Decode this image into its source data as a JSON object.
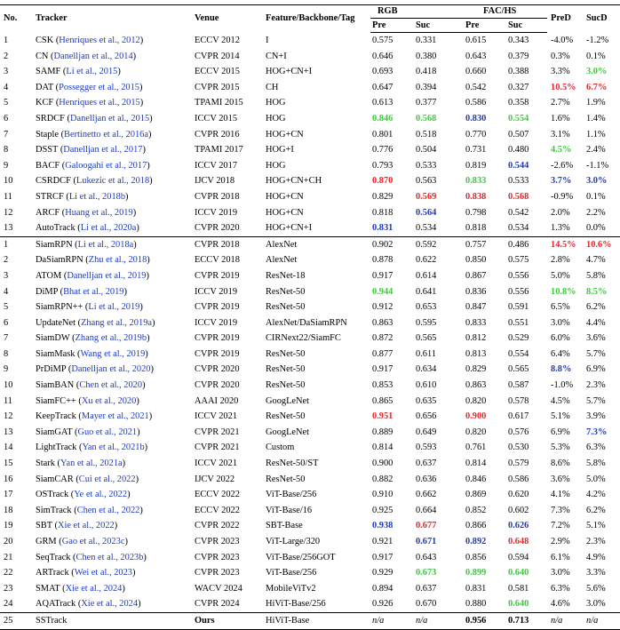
{
  "header": {
    "no": "No.",
    "tracker": "Tracker",
    "venue": "Venue",
    "feature": "Feature/Backbone/Tag",
    "rgb": "RGB",
    "fachs": "FAC/HS",
    "pred": "PreD",
    "sucd": "SucD",
    "pre": "Pre",
    "suc": "Suc"
  },
  "groups": [
    {
      "rows": [
        {
          "no": "1",
          "name": "CSK",
          "cite": "Henriques et al., 2012",
          "venue": "ECCV 2012",
          "feature": "I",
          "rgb_pre": "0.575",
          "rgb_suc": "0.331",
          "fac_pre": "0.615",
          "fac_suc": "0.343",
          "pred": "-4.0%",
          "sucd": "-1.2%"
        },
        {
          "no": "2",
          "name": "CN",
          "cite": "Danelljan et al., 2014",
          "venue": "CVPR 2014",
          "feature": "CN+I",
          "rgb_pre": "0.646",
          "rgb_suc": "0.380",
          "fac_pre": "0.643",
          "fac_suc": "0.379",
          "pred": "0.3%",
          "sucd": "0.1%"
        },
        {
          "no": "3",
          "name": "SAMF",
          "cite": "Li et al., 2015",
          "venue": "ECCV 2015",
          "feature": "HOG+CN+I",
          "rgb_pre": "0.693",
          "rgb_suc": "0.418",
          "fac_pre": "0.660",
          "fac_suc": "0.388",
          "pred": "3.3%",
          "sucd": "3.0%",
          "sucd_c": "green"
        },
        {
          "no": "4",
          "name": "DAT",
          "cite": "Possegger et al., 2015",
          "venue": "CVPR 2015",
          "feature": "CH",
          "rgb_pre": "0.647",
          "rgb_suc": "0.394",
          "fac_pre": "0.542",
          "fac_suc": "0.327",
          "pred": "10.5%",
          "sucd": "6.7%",
          "pred_c": "red",
          "sucd_c": "red"
        },
        {
          "no": "5",
          "name": "KCF",
          "cite": "Henriques et al., 2015",
          "venue": "TPAMI 2015",
          "feature": "HOG",
          "rgb_pre": "0.613",
          "rgb_suc": "0.377",
          "fac_pre": "0.586",
          "fac_suc": "0.358",
          "pred": "2.7%",
          "sucd": "1.9%"
        },
        {
          "no": "6",
          "name": "SRDCF",
          "cite": "Danelljan et al., 2015",
          "venue": "ICCV 2015",
          "feature": "HOG",
          "rgb_pre": "0.846",
          "rgb_suc": "0.568",
          "fac_pre": "0.830",
          "fac_suc": "0.554",
          "pred": "1.6%",
          "sucd": "1.4%",
          "rgb_pre_c": "green",
          "rgb_suc_c": "green",
          "fac_pre_c": "blue",
          "fac_suc_c": "green"
        },
        {
          "no": "7",
          "name": "Staple",
          "cite": "Bertinetto et al., 2016a",
          "venue": "CVPR 2016",
          "feature": "HOG+CN",
          "rgb_pre": "0.801",
          "rgb_suc": "0.518",
          "fac_pre": "0.770",
          "fac_suc": "0.507",
          "pred": "3.1%",
          "sucd": "1.1%"
        },
        {
          "no": "8",
          "name": "DSST",
          "cite": "Danelljan et al., 2017",
          "venue": "TPAMI 2017",
          "feature": "HOG+I",
          "rgb_pre": "0.776",
          "rgb_suc": "0.504",
          "fac_pre": "0.731",
          "fac_suc": "0.480",
          "pred": "4.5%",
          "sucd": "2.4%",
          "pred_c": "green"
        },
        {
          "no": "9",
          "name": "BACF",
          "cite": "Galoogahi et al., 2017",
          "venue": "ICCV 2017",
          "feature": "HOG",
          "rgb_pre": "0.793",
          "rgb_suc": "0.533",
          "fac_pre": "0.819",
          "fac_suc": "0.544",
          "pred": "-2.6%",
          "sucd": "-1.1%",
          "fac_suc_c": "blue"
        },
        {
          "no": "10",
          "name": "CSRDCF",
          "cite": "Lukezic et al., 2018",
          "venue": "IJCV 2018",
          "feature": "HOG+CN+CH",
          "rgb_pre": "0.870",
          "rgb_suc": "0.563",
          "fac_pre": "0.833",
          "fac_suc": "0.533",
          "pred": "3.7%",
          "sucd": "3.0%",
          "rgb_pre_c": "red",
          "fac_pre_c": "green",
          "pred_c": "blue",
          "sucd_c": "blue"
        },
        {
          "no": "11",
          "name": "STRCF",
          "cite": "Li et al., 2018b",
          "venue": "CVPR 2018",
          "feature": "HOG+CN",
          "rgb_pre": "0.829",
          "rgb_suc": "0.569",
          "fac_pre": "0.838",
          "fac_suc": "0.568",
          "pred": "-0.9%",
          "sucd": "0.1%",
          "rgb_suc_c": "red",
          "fac_pre_c": "red",
          "fac_suc_c": "red"
        },
        {
          "no": "12",
          "name": "ARCF",
          "cite": "Huang et al., 2019",
          "venue": "ICCV 2019",
          "feature": "HOG+CN",
          "rgb_pre": "0.818",
          "rgb_suc": "0.564",
          "fac_pre": "0.798",
          "fac_suc": "0.542",
          "pred": "2.0%",
          "sucd": "2.2%",
          "rgb_suc_c": "blue"
        },
        {
          "no": "13",
          "name": "AutoTrack",
          "cite": "Li et al., 2020a",
          "venue": "CVPR 2020",
          "feature": "HOG+CN+I",
          "rgb_pre": "0.831",
          "rgb_suc": "0.534",
          "fac_pre": "0.818",
          "fac_suc": "0.534",
          "pred": "1.3%",
          "sucd": "0.0%",
          "rgb_pre_c": "blue"
        }
      ]
    },
    {
      "rows": [
        {
          "no": "1",
          "name": "SiamRPN",
          "cite": "Li et al., 2018a",
          "venue": "CVPR 2018",
          "feature": "AlexNet",
          "rgb_pre": "0.902",
          "rgb_suc": "0.592",
          "fac_pre": "0.757",
          "fac_suc": "0.486",
          "pred": "14.5%",
          "sucd": "10.6%",
          "pred_c": "red",
          "sucd_c": "red"
        },
        {
          "no": "2",
          "name": "DaSiamRPN",
          "cite": "Zhu et al., 2018",
          "venue": "ECCV 2018",
          "feature": "AlexNet",
          "rgb_pre": "0.878",
          "rgb_suc": "0.622",
          "fac_pre": "0.850",
          "fac_suc": "0.575",
          "pred": "2.8%",
          "sucd": "4.7%"
        },
        {
          "no": "3",
          "name": "ATOM",
          "cite": "Danelljan et al., 2019",
          "venue": "CVPR 2019",
          "feature": "ResNet-18",
          "rgb_pre": "0.917",
          "rgb_suc": "0.614",
          "fac_pre": "0.867",
          "fac_suc": "0.556",
          "pred": "5.0%",
          "sucd": "5.8%"
        },
        {
          "no": "4",
          "name": "DiMP",
          "cite": "Bhat et al., 2019",
          "venue": "ICCV 2019",
          "feature": "ResNet-50",
          "rgb_pre": "0.944",
          "rgb_suc": "0.641",
          "fac_pre": "0.836",
          "fac_suc": "0.556",
          "pred": "10.8%",
          "sucd": "8.5%",
          "rgb_pre_c": "green",
          "pred_c": "green",
          "sucd_c": "green"
        },
        {
          "no": "5",
          "name": "SiamRPN++",
          "cite": "Li et al., 2019",
          "venue": "CVPR 2019",
          "feature": "ResNet-50",
          "rgb_pre": "0.912",
          "rgb_suc": "0.653",
          "fac_pre": "0.847",
          "fac_suc": "0.591",
          "pred": "6.5%",
          "sucd": "6.2%"
        },
        {
          "no": "6",
          "name": "UpdateNet",
          "cite": "Zhang et al., 2019a",
          "venue": "ICCV 2019",
          "feature": "AlexNet/DaSiamRPN",
          "rgb_pre": "0.863",
          "rgb_suc": "0.595",
          "fac_pre": "0.833",
          "fac_suc": "0.551",
          "pred": "3.0%",
          "sucd": "4.4%"
        },
        {
          "no": "7",
          "name": "SiamDW",
          "cite": "Zhang et al., 2019b",
          "venue": "CVPR 2019",
          "feature": "CIRNext22/SiamFC",
          "rgb_pre": "0.872",
          "rgb_suc": "0.565",
          "fac_pre": "0.812",
          "fac_suc": "0.529",
          "pred": "6.0%",
          "sucd": "3.6%"
        },
        {
          "no": "8",
          "name": "SiamMask",
          "cite": "Wang et al., 2019",
          "venue": "CVPR 2019",
          "feature": "ResNet-50",
          "rgb_pre": "0.877",
          "rgb_suc": "0.611",
          "fac_pre": "0.813",
          "fac_suc": "0.554",
          "pred": "6.4%",
          "sucd": "5.7%"
        },
        {
          "no": "9",
          "name": "PrDiMP",
          "cite": "Danelljan et al., 2020",
          "venue": "CVPR 2020",
          "feature": "ResNet-50",
          "rgb_pre": "0.917",
          "rgb_suc": "0.634",
          "fac_pre": "0.829",
          "fac_suc": "0.565",
          "pred": "8.8%",
          "sucd": "6.9%",
          "pred_c": "blue"
        },
        {
          "no": "10",
          "name": "SiamBAN",
          "cite": "Chen et al., 2020",
          "venue": "CVPR 2020",
          "feature": "ResNet-50",
          "rgb_pre": "0.853",
          "rgb_suc": "0.610",
          "fac_pre": "0.863",
          "fac_suc": "0.587",
          "pred": "-1.0%",
          "sucd": "2.3%"
        },
        {
          "no": "11",
          "name": "SiamFC++",
          "cite": "Xu et al., 2020",
          "venue": "AAAI 2020",
          "feature": "GoogLeNet",
          "rgb_pre": "0.865",
          "rgb_suc": "0.635",
          "fac_pre": "0.820",
          "fac_suc": "0.578",
          "pred": "4.5%",
          "sucd": "5.7%"
        },
        {
          "no": "12",
          "name": "KeepTrack",
          "cite": "Mayer et al., 2021",
          "venue": "ICCV 2021",
          "feature": "ResNet-50",
          "rgb_pre": "0.951",
          "rgb_suc": "0.656",
          "fac_pre": "0.900",
          "fac_suc": "0.617",
          "pred": "5.1%",
          "sucd": "3.9%",
          "rgb_pre_c": "red",
          "fac_pre_c": "red"
        },
        {
          "no": "13",
          "name": "SiamGAT",
          "cite": "Guo et al., 2021",
          "venue": "CVPR 2021",
          "feature": "GoogLeNet",
          "rgb_pre": "0.889",
          "rgb_suc": "0.649",
          "fac_pre": "0.820",
          "fac_suc": "0.576",
          "pred": "6.9%",
          "sucd": "7.3%",
          "sucd_c": "blue"
        },
        {
          "no": "14",
          "name": "LightTrack",
          "cite": "Yan et al., 2021b",
          "venue": "CVPR 2021",
          "feature": "Custom",
          "rgb_pre": "0.814",
          "rgb_suc": "0.593",
          "fac_pre": "0.761",
          "fac_suc": "0.530",
          "pred": "5.3%",
          "sucd": "6.3%"
        },
        {
          "no": "15",
          "name": "Stark",
          "cite": "Yan et al., 2021a",
          "venue": "ICCV 2021",
          "feature": "ResNet-50/ST",
          "rgb_pre": "0.900",
          "rgb_suc": "0.637",
          "fac_pre": "0.814",
          "fac_suc": "0.579",
          "pred": "8.6%",
          "sucd": "5.8%"
        },
        {
          "no": "16",
          "name": "SiamCAR",
          "cite": "Cui et al., 2022",
          "venue": "IJCV 2022",
          "feature": "ResNet-50",
          "rgb_pre": "0.882",
          "rgb_suc": "0.636",
          "fac_pre": "0.846",
          "fac_suc": "0.586",
          "pred": "3.6%",
          "sucd": "5.0%"
        },
        {
          "no": "17",
          "name": "OSTrack",
          "cite": "Ye et al., 2022",
          "venue": "ECCV 2022",
          "feature": "ViT-Base/256",
          "rgb_pre": "0.910",
          "rgb_suc": "0.662",
          "fac_pre": "0.869",
          "fac_suc": "0.620",
          "pred": "4.1%",
          "sucd": "4.2%"
        },
        {
          "no": "18",
          "name": "SimTrack",
          "cite": "Chen et al., 2022",
          "venue": "ECCV 2022",
          "feature": "ViT-Base/16",
          "rgb_pre": "0.925",
          "rgb_suc": "0.664",
          "fac_pre": "0.852",
          "fac_suc": "0.602",
          "pred": "7.3%",
          "sucd": "6.2%"
        },
        {
          "no": "19",
          "name": "SBT",
          "cite": "Xie et al., 2022",
          "venue": "CVPR 2022",
          "feature": "SBT-Base",
          "rgb_pre": "0.938",
          "rgb_suc": "0.677",
          "fac_pre": "0.866",
          "fac_suc": "0.626",
          "pred": "7.2%",
          "sucd": "5.1%",
          "rgb_pre_c": "blue",
          "rgb_suc_c": "red",
          "fac_suc_c": "blue"
        },
        {
          "no": "20",
          "name": "GRM",
          "cite": "Gao et al., 2023c",
          "venue": "CVPR 2023",
          "feature": "ViT-Large/320",
          "rgb_pre": "0.921",
          "rgb_suc": "0.671",
          "fac_pre": "0.892",
          "fac_suc": "0.648",
          "pred": "2.9%",
          "sucd": "2.3%",
          "rgb_suc_c": "blue",
          "fac_pre_c": "blue",
          "fac_suc_c": "red"
        },
        {
          "no": "21",
          "name": "SeqTrack",
          "cite": "Chen et al., 2023b",
          "venue": "CVPR 2023",
          "feature": "ViT-Base/256GOT",
          "rgb_pre": "0.917",
          "rgb_suc": "0.643",
          "fac_pre": "0.856",
          "fac_suc": "0.594",
          "pred": "6.1%",
          "sucd": "4.9%"
        },
        {
          "no": "22",
          "name": "ARTrack",
          "cite": "Wei et al., 2023",
          "venue": "CVPR 2023",
          "feature": "ViT-Base/256",
          "rgb_pre": "0.929",
          "rgb_suc": "0.673",
          "fac_pre": "0.899",
          "fac_suc": "0.640",
          "pred": "3.0%",
          "sucd": "3.3%",
          "rgb_suc_c": "green",
          "fac_pre_c": "green",
          "fac_suc_c": "green"
        },
        {
          "no": "23",
          "name": "SMAT",
          "cite": "Xie et al., 2024",
          "venue": "WACV 2024",
          "feature": "MobileViTv2",
          "rgb_pre": "0.894",
          "rgb_suc": "0.637",
          "fac_pre": "0.831",
          "fac_suc": "0.581",
          "pred": "6.3%",
          "sucd": "5.6%"
        },
        {
          "no": "24",
          "name": "AQATrack",
          "cite": "Xie et al., 2024",
          "venue": "CVPR 2024",
          "feature": "HiViT-Base/256",
          "rgb_pre": "0.926",
          "rgb_suc": "0.670",
          "fac_pre": "0.880",
          "fac_suc": "0.640",
          "pred": "4.6%",
          "sucd": "3.0%",
          "fac_suc_c": "green"
        }
      ]
    },
    {
      "rows": [
        {
          "no": "25",
          "name": "SSTrack",
          "cite": "",
          "venue": "Ours",
          "feature": "HiViT-Base",
          "rgb_pre": "n/a",
          "rgb_suc": "n/a",
          "fac_pre": "0.956",
          "fac_suc": "0.713",
          "pred": "n/a",
          "sucd": "n/a",
          "venue_c": "bold",
          "fac_pre_c": "bold",
          "fac_suc_c": "bold",
          "na": true
        }
      ]
    }
  ],
  "colors": {
    "red": "#e8262b",
    "green": "#3ccc3c",
    "blue": "#1f3bbf",
    "citation": "#1f3bbf"
  }
}
